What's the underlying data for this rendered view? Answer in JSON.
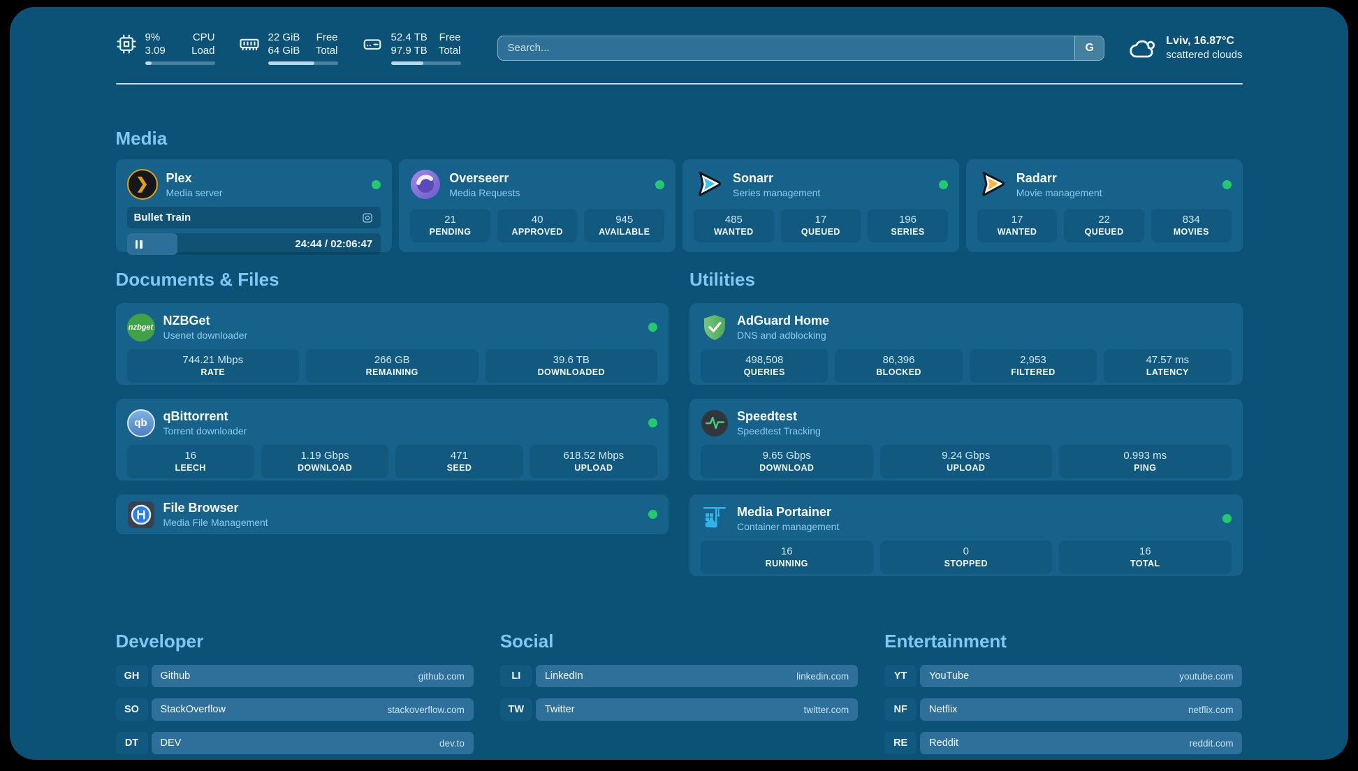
{
  "colors": {
    "background": "#0b5276",
    "card": "#17628b",
    "accent_heading": "#7ec9f3",
    "status_online": "#25c96d",
    "plex_gold": "#e5a00d"
  },
  "topbar": {
    "stats": [
      {
        "icon": "cpu-icon",
        "value_top": "9%",
        "value_bottom": "3.09",
        "label_top": "CPU",
        "label_bottom": "Load",
        "progress": 9
      },
      {
        "icon": "ram-icon",
        "value_top": "22 GiB",
        "value_bottom": "64 GiB",
        "label_top": "Free",
        "label_bottom": "Total",
        "progress": 66
      },
      {
        "icon": "disk-icon",
        "value_top": "52.4 TB",
        "value_bottom": "97.9 TB",
        "label_top": "Free",
        "label_bottom": "Total",
        "progress": 46
      }
    ],
    "search": {
      "placeholder": "Search...",
      "button_label": "G"
    },
    "weather": {
      "line1": "Lviv, 16.87°C",
      "line2": "scattered clouds"
    }
  },
  "media": {
    "title": "Media",
    "plex": {
      "title": "Plex",
      "subtitle": "Media server",
      "now_playing": "Bullet Train",
      "time": "24:44 / 02:06:47",
      "progress": 20
    },
    "overseerr": {
      "title": "Overseerr",
      "subtitle": "Media Requests",
      "stats": [
        {
          "value": "21",
          "label": "PENDING"
        },
        {
          "value": "40",
          "label": "APPROVED"
        },
        {
          "value": "945",
          "label": "AVAILABLE"
        }
      ]
    },
    "sonarr": {
      "title": "Sonarr",
      "subtitle": "Series management",
      "stats": [
        {
          "value": "485",
          "label": "WANTED"
        },
        {
          "value": "17",
          "label": "QUEUED"
        },
        {
          "value": "196",
          "label": "SERIES"
        }
      ]
    },
    "radarr": {
      "title": "Radarr",
      "subtitle": "Movie management",
      "stats": [
        {
          "value": "17",
          "label": "WANTED"
        },
        {
          "value": "22",
          "label": "QUEUED"
        },
        {
          "value": "834",
          "label": "MOVIES"
        }
      ]
    }
  },
  "documents": {
    "title": "Documents & Files",
    "nzbget": {
      "title": "NZBGet",
      "subtitle": "Usenet downloader",
      "icon_text": "nzbget",
      "stats": [
        {
          "value": "744.21 Mbps",
          "label": "RATE"
        },
        {
          "value": "266 GB",
          "label": "REMAINING"
        },
        {
          "value": "39.6 TB",
          "label": "DOWNLOADED"
        }
      ]
    },
    "qbittorrent": {
      "title": "qBittorrent",
      "subtitle": "Torrent downloader",
      "icon_text": "qb",
      "stats": [
        {
          "value": "16",
          "label": "LEECH"
        },
        {
          "value": "1.19 Gbps",
          "label": "DOWNLOAD"
        },
        {
          "value": "471",
          "label": "SEED"
        },
        {
          "value": "618.52 Mbps",
          "label": "UPLOAD"
        }
      ]
    },
    "filebrowser": {
      "title": "File Browser",
      "subtitle": "Media File Management"
    }
  },
  "utilities": {
    "title": "Utilities",
    "adguard": {
      "title": "AdGuard Home",
      "subtitle": "DNS and adblocking",
      "stats": [
        {
          "value": "498,508",
          "label": "QUERIES"
        },
        {
          "value": "86,396",
          "label": "BLOCKED"
        },
        {
          "value": "2,953",
          "label": "FILTERED"
        },
        {
          "value": "47.57 ms",
          "label": "LATENCY"
        }
      ]
    },
    "speedtest": {
      "title": "Speedtest",
      "subtitle": "Speedtest Tracking",
      "stats": [
        {
          "value": "9.65 Gbps",
          "label": "DOWNLOAD"
        },
        {
          "value": "9.24 Gbps",
          "label": "UPLOAD"
        },
        {
          "value": "0.993 ms",
          "label": "PING"
        }
      ]
    },
    "portainer": {
      "title": "Media Portainer",
      "subtitle": "Container management",
      "stats": [
        {
          "value": "16",
          "label": "RUNNING"
        },
        {
          "value": "0",
          "label": "STOPPED"
        },
        {
          "value": "16",
          "label": "TOTAL"
        }
      ]
    }
  },
  "bookmarks": {
    "developer": {
      "title": "Developer",
      "items": [
        {
          "abbr": "GH",
          "name": "Github",
          "url": "github.com"
        },
        {
          "abbr": "SO",
          "name": "StackOverflow",
          "url": "stackoverflow.com"
        },
        {
          "abbr": "DT",
          "name": "DEV",
          "url": "dev.to"
        }
      ]
    },
    "social": {
      "title": "Social",
      "items": [
        {
          "abbr": "LI",
          "name": "LinkedIn",
          "url": "linkedin.com"
        },
        {
          "abbr": "TW",
          "name": "Twitter",
          "url": "twitter.com"
        }
      ]
    },
    "entertainment": {
      "title": "Entertainment",
      "items": [
        {
          "abbr": "YT",
          "name": "YouTube",
          "url": "youtube.com"
        },
        {
          "abbr": "NF",
          "name": "Netflix",
          "url": "netflix.com"
        },
        {
          "abbr": "RE",
          "name": "Reddit",
          "url": "reddit.com"
        }
      ]
    }
  }
}
